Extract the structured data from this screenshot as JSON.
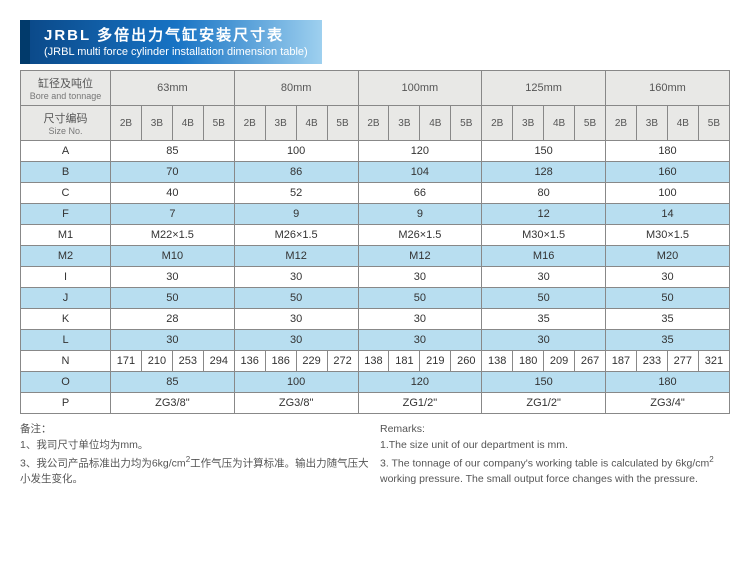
{
  "title": {
    "cn": "JRBL 多倍出力气缸安装尺寸表",
    "en": "(JRBL multi force cylinder installation dimension table)"
  },
  "header": {
    "bore_cn": "缸径及吨位",
    "bore_en": "Bore and tonnage",
    "size_cn": "尺寸编码",
    "size_en": "Size No.",
    "sizes": [
      "63mm",
      "80mm",
      "100mm",
      "125mm",
      "160mm"
    ],
    "subs": [
      "2B",
      "3B",
      "4B",
      "5B"
    ]
  },
  "rows": [
    {
      "label": "A",
      "vals": [
        "85",
        "100",
        "120",
        "150",
        "180"
      ],
      "split": false
    },
    {
      "label": "B",
      "vals": [
        "70",
        "86",
        "104",
        "128",
        "160"
      ],
      "split": false,
      "blue": true
    },
    {
      "label": "C",
      "vals": [
        "40",
        "52",
        "66",
        "80",
        "100"
      ],
      "split": false
    },
    {
      "label": "F",
      "vals": [
        "7",
        "9",
        "9",
        "12",
        "14"
      ],
      "split": false,
      "blue": true
    },
    {
      "label": "M1",
      "vals": [
        "M22×1.5",
        "M26×1.5",
        "M26×1.5",
        "M30×1.5",
        "M30×1.5"
      ],
      "split": false
    },
    {
      "label": "M2",
      "vals": [
        "M10",
        "M12",
        "M12",
        "M16",
        "M20"
      ],
      "split": false,
      "blue": true
    },
    {
      "label": "I",
      "vals": [
        "30",
        "30",
        "30",
        "30",
        "30"
      ],
      "split": false
    },
    {
      "label": "J",
      "vals": [
        "50",
        "50",
        "50",
        "50",
        "50"
      ],
      "split": false,
      "blue": true
    },
    {
      "label": "K",
      "vals": [
        "28",
        "30",
        "30",
        "35",
        "35"
      ],
      "split": false
    },
    {
      "label": "L",
      "vals": [
        "30",
        "30",
        "30",
        "30",
        "35"
      ],
      "split": false,
      "blue": true
    },
    {
      "label": "N",
      "vals": [
        "171",
        "210",
        "253",
        "294",
        "136",
        "186",
        "229",
        "272",
        "138",
        "181",
        "219",
        "260",
        "138",
        "180",
        "209",
        "267",
        "187",
        "233",
        "277",
        "321"
      ],
      "split": true
    },
    {
      "label": "O",
      "vals": [
        "85",
        "100",
        "120",
        "150",
        "180"
      ],
      "split": false,
      "blue": true
    },
    {
      "label": "P",
      "vals": [
        "ZG3/8\"",
        "ZG3/8\"",
        "ZG1/2\"",
        "ZG1/2\"",
        "ZG3/4\""
      ],
      "split": false
    }
  ],
  "notes": {
    "cn_head": "备注：",
    "cn1": "1、我司尺寸单位均为mm。",
    "cn3a": "3、我公司产品标准出力均为6kg/cm",
    "cn3b": "工作气压为计算标准。输出力随气压大小发生变化。",
    "en_head": "Remarks:",
    "en1": "1.The size unit of our department is mm.",
    "en3a": "3. The tonnage of our company's working table is calculated by 6kg/cm",
    "en3b": "working pressure. The small output force changes with the pressure."
  }
}
